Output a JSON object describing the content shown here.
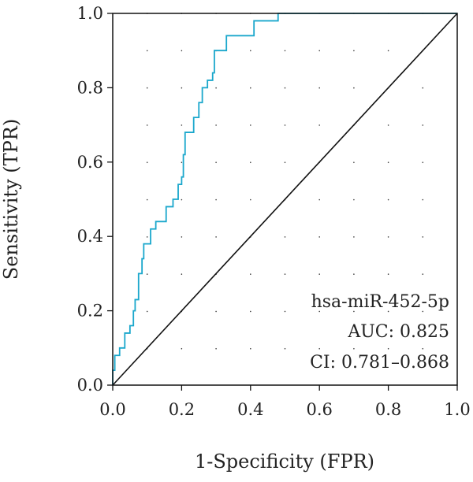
{
  "chart_data": {
    "type": "line",
    "xlabel": "1-Specificity (FPR)",
    "ylabel": "Sensitivity (TPR)",
    "xlim": [
      0,
      1
    ],
    "ylim": [
      0,
      1
    ],
    "xticks": [
      "0.0",
      "0.2",
      "0.4",
      "0.6",
      "0.8",
      "1.0"
    ],
    "yticks": [
      "0.0",
      "0.2",
      "0.4",
      "0.6",
      "0.8",
      "1.0"
    ],
    "grid": true,
    "series": [
      {
        "color": "#1aa7cc",
        "style": "step",
        "points": [
          [
            0.0,
            0.0
          ],
          [
            0.0,
            0.04
          ],
          [
            0.006,
            0.04
          ],
          [
            0.006,
            0.08
          ],
          [
            0.02,
            0.08
          ],
          [
            0.02,
            0.1
          ],
          [
            0.035,
            0.1
          ],
          [
            0.035,
            0.14
          ],
          [
            0.05,
            0.14
          ],
          [
            0.05,
            0.16
          ],
          [
            0.06,
            0.16
          ],
          [
            0.06,
            0.2
          ],
          [
            0.065,
            0.2
          ],
          [
            0.065,
            0.23
          ],
          [
            0.075,
            0.23
          ],
          [
            0.075,
            0.3
          ],
          [
            0.085,
            0.3
          ],
          [
            0.085,
            0.34
          ],
          [
            0.09,
            0.34
          ],
          [
            0.09,
            0.38
          ],
          [
            0.11,
            0.38
          ],
          [
            0.11,
            0.42
          ],
          [
            0.125,
            0.42
          ],
          [
            0.125,
            0.44
          ],
          [
            0.155,
            0.44
          ],
          [
            0.155,
            0.48
          ],
          [
            0.175,
            0.48
          ],
          [
            0.175,
            0.5
          ],
          [
            0.19,
            0.5
          ],
          [
            0.19,
            0.54
          ],
          [
            0.2,
            0.54
          ],
          [
            0.2,
            0.56
          ],
          [
            0.205,
            0.56
          ],
          [
            0.205,
            0.62
          ],
          [
            0.21,
            0.62
          ],
          [
            0.21,
            0.68
          ],
          [
            0.235,
            0.68
          ],
          [
            0.235,
            0.72
          ],
          [
            0.25,
            0.72
          ],
          [
            0.25,
            0.76
          ],
          [
            0.26,
            0.76
          ],
          [
            0.26,
            0.8
          ],
          [
            0.275,
            0.8
          ],
          [
            0.275,
            0.82
          ],
          [
            0.29,
            0.82
          ],
          [
            0.29,
            0.84
          ],
          [
            0.295,
            0.84
          ],
          [
            0.295,
            0.9
          ],
          [
            0.33,
            0.9
          ],
          [
            0.33,
            0.94
          ],
          [
            0.41,
            0.94
          ],
          [
            0.41,
            0.98
          ],
          [
            0.48,
            0.98
          ],
          [
            0.48,
            1.0
          ],
          [
            1.0,
            1.0
          ]
        ]
      },
      {
        "color": "#111111",
        "style": "reference",
        "points": [
          [
            0,
            0
          ],
          [
            1,
            1
          ]
        ]
      }
    ],
    "annotations": [
      "hsa-miR-452-5p",
      "AUC: 0.825",
      "CI: 0.781–0.868"
    ]
  }
}
